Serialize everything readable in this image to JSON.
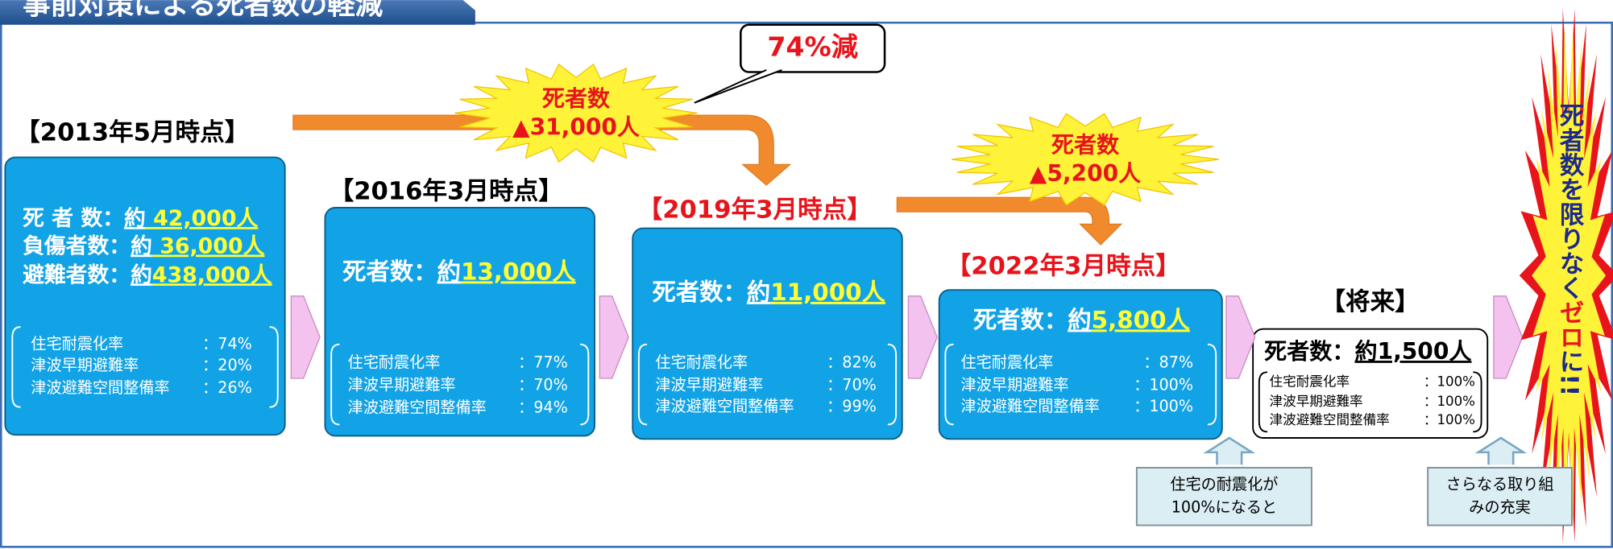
{
  "header": {
    "title": "事前対策による死者数の軽減"
  },
  "stages": [
    {
      "period": "【2013年5月時点】",
      "stats": [
        {
          "label": "死 者 数：",
          "approx": "約",
          "value": " 42,000人"
        },
        {
          "label": "負傷者数：",
          "approx": "約",
          "value": " 36,000人"
        },
        {
          "label": "避難者数：",
          "approx": "約",
          "value": "438,000人"
        }
      ],
      "rates": [
        {
          "label": "住宅耐震化率",
          "value": "：74%"
        },
        {
          "label": "津波早期避難率",
          "value": "：20%"
        },
        {
          "label": "津波避難空間整備率",
          "value": "：26%"
        }
      ]
    },
    {
      "period": "【2016年3月時点】",
      "stats": [
        {
          "label": "死者数：",
          "approx": "約",
          "value": "13,000人"
        }
      ],
      "rates": [
        {
          "label": "住宅耐震化率",
          "value": "：77%"
        },
        {
          "label": "津波早期避難率",
          "value": "：70%"
        },
        {
          "label": "津波避難空間整備率",
          "value": "：94%"
        }
      ]
    },
    {
      "period": "【2019年3月時点】",
      "stats": [
        {
          "label": "死者数：",
          "approx": "約",
          "value": "11,000人"
        }
      ],
      "rates": [
        {
          "label": "住宅耐震化率",
          "value": "：82%"
        },
        {
          "label": "津波早期避難率",
          "value": "：70%"
        },
        {
          "label": "津波避難空間整備率",
          "value": "：99%"
        }
      ]
    },
    {
      "period": "【2022年3月時点】",
      "stats": [
        {
          "label": "死者数：",
          "approx": "約",
          "value": "5,800人"
        }
      ],
      "rates": [
        {
          "label": "住宅耐震化率",
          "value": "：87%"
        },
        {
          "label": "津波早期避難率",
          "value": "：100%"
        },
        {
          "label": "津波避難空間整備率",
          "value": "：100%"
        }
      ]
    },
    {
      "period": "【将来】",
      "stats": [
        {
          "label": "死者数：",
          "approx": "約",
          "value": "1,500人"
        }
      ],
      "rates": [
        {
          "label": "住宅耐震化率",
          "value": "：100%"
        },
        {
          "label": "津波早期避難率",
          "value": "：100%"
        },
        {
          "label": "津波避難空間整備率",
          "value": "：100%"
        }
      ]
    }
  ],
  "bursts": [
    {
      "lines": [
        "死者数",
        "▲31,000人"
      ]
    },
    {
      "lines": [
        "死者数",
        "▲5,200人"
      ]
    }
  ],
  "callout": "74%減",
  "goal": {
    "parts": [
      "死者数を限りなく",
      "ゼロ",
      "に!!"
    ]
  },
  "notes": [
    {
      "lines": [
        "住宅の耐震化が",
        "100%になると"
      ]
    },
    {
      "lines": [
        "さらなる取り組",
        "みの充実"
      ]
    }
  ]
}
